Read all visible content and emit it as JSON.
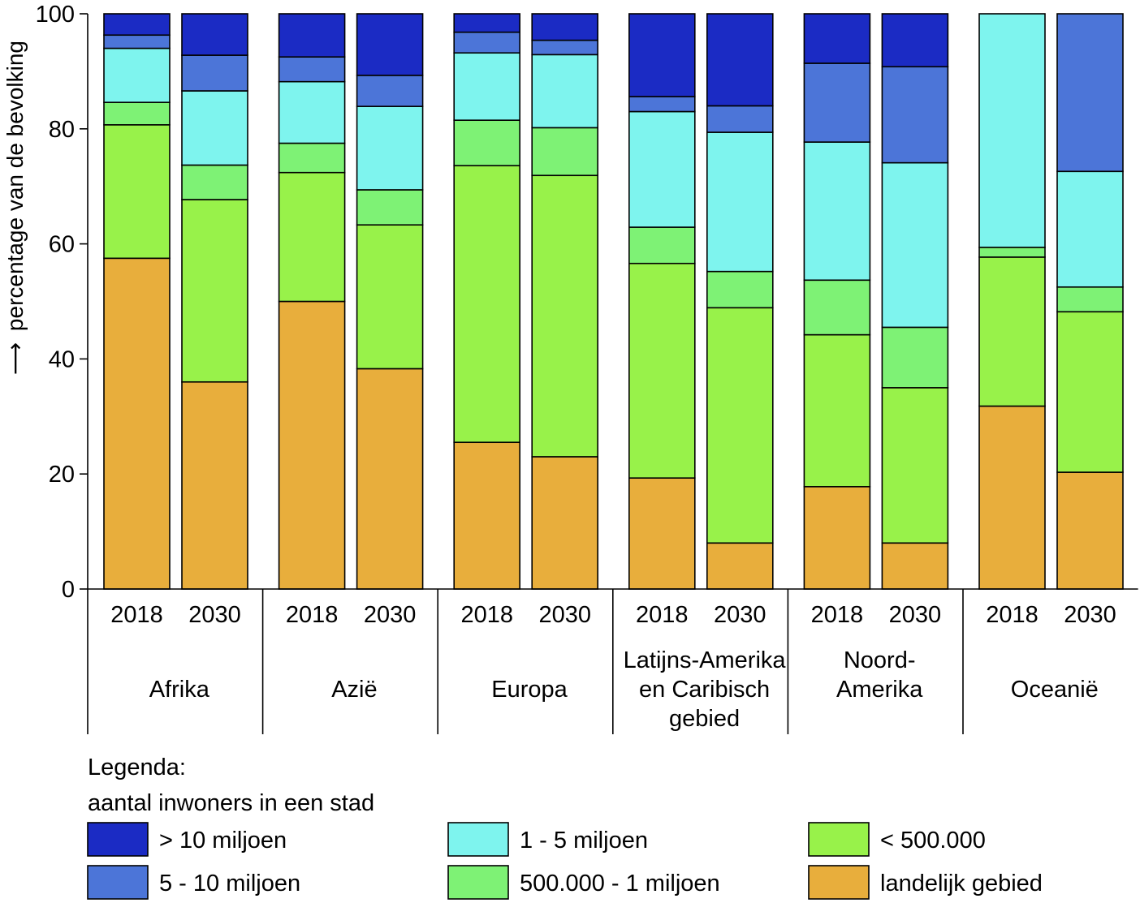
{
  "chart_data": {
    "type": "bar",
    "stacked": true,
    "ylabel": "percentage van de bevolking",
    "ylabel_arrow": "⟶",
    "ylim": [
      0,
      100
    ],
    "yticks": [
      0,
      20,
      40,
      60,
      80,
      100
    ],
    "regions": [
      {
        "name": "Afrika",
        "lines": [
          "Afrika"
        ]
      },
      {
        "name": "Azië",
        "lines": [
          "Azië"
        ]
      },
      {
        "name": "Europa",
        "lines": [
          "Europa"
        ]
      },
      {
        "name": "Latijns-Amerika en Caribisch gebied",
        "lines": [
          "Latijns-Amerika",
          "en Caribisch",
          "gebied"
        ]
      },
      {
        "name": "Noord-Amerika",
        "lines": [
          "Noord-",
          "Amerika"
        ]
      },
      {
        "name": "Oceanië",
        "lines": [
          "Oceanië"
        ]
      }
    ],
    "years": [
      "2018",
      "2030"
    ],
    "series": [
      {
        "name": "landelijk gebied",
        "color": "#E8AE3C",
        "values": [
          [
            57.5,
            36
          ],
          [
            50,
            38.3
          ],
          [
            25.5,
            23
          ],
          [
            19.3,
            8
          ],
          [
            17.8,
            8
          ],
          [
            31.8,
            20.3
          ]
        ]
      },
      {
        "name": "< 500.000",
        "color": "#98F24A",
        "values": [
          [
            23.2,
            31.7
          ],
          [
            22.4,
            25
          ],
          [
            48.1,
            48.9
          ],
          [
            37.3,
            40.9
          ],
          [
            26.4,
            27
          ],
          [
            25.9,
            27.9
          ]
        ]
      },
      {
        "name": "500.000 - 1 miljoen",
        "color": "#7EF275",
        "values": [
          [
            3.9,
            6
          ],
          [
            5.1,
            6.1
          ],
          [
            7.9,
            8.3
          ],
          [
            6.3,
            6.3
          ],
          [
            9.5,
            10.5
          ],
          [
            1.7,
            4.3
          ]
        ]
      },
      {
        "name": "1 - 5 miljoen",
        "color": "#7EF4EE",
        "values": [
          [
            9.4,
            12.9
          ],
          [
            10.7,
            14.5
          ],
          [
            11.7,
            12.7
          ],
          [
            20.1,
            24.2
          ],
          [
            24.0,
            28.6
          ],
          [
            40.6,
            20.1
          ]
        ]
      },
      {
        "name": "5 - 10 miljoen",
        "color": "#4C75D8",
        "values": [
          [
            2.3,
            6.2
          ],
          [
            4.3,
            5.4
          ],
          [
            3.6,
            2.5
          ],
          [
            2.6,
            4.6
          ],
          [
            13.7,
            16.7
          ],
          [
            0,
            27.4
          ]
        ]
      },
      {
        "name": "> 10 miljoen",
        "color": "#1B2BC4",
        "values": [
          [
            3.7,
            7.2
          ],
          [
            7.5,
            10.7
          ],
          [
            3.2,
            4.6
          ],
          [
            14.4,
            16
          ],
          [
            8.6,
            9.2
          ],
          [
            0,
            0
          ]
        ]
      }
    ]
  },
  "legend": {
    "title_line1": "Legenda:",
    "title_line2": "aantal inwoners in een stad",
    "items": [
      {
        "label": "> 10 miljoen",
        "color": "#1B2BC4"
      },
      {
        "label": "5 - 10 miljoen",
        "color": "#4C75D8"
      },
      {
        "label": "1 - 5 miljoen",
        "color": "#7EF4EE"
      },
      {
        "label": "500.000 - 1 miljoen",
        "color": "#7EF275"
      },
      {
        "label": "< 500.000",
        "color": "#98F24A"
      },
      {
        "label": "landelijk gebied",
        "color": "#E8AE3C"
      }
    ]
  }
}
